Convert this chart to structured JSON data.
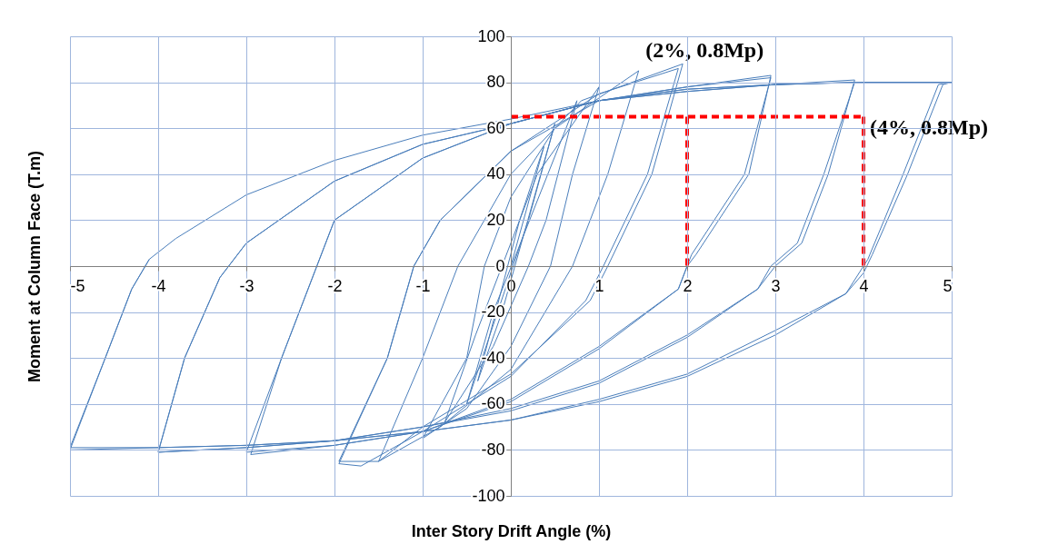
{
  "chart_data": {
    "type": "line",
    "xlabel": "Inter Story Drift Angle (%)",
    "ylabel": "Moment at Column Face (T.m)",
    "xlim": [
      -5,
      5
    ],
    "xticks": [
      -5,
      -4,
      -3,
      -2,
      -1,
      0,
      1,
      2,
      3,
      4,
      5
    ],
    "ylim": [
      -100,
      100
    ],
    "yticks": [
      -100,
      -80,
      -60,
      -40,
      -20,
      0,
      20,
      40,
      60,
      80,
      100
    ],
    "grid": true,
    "series": [
      {
        "color": "#4a7ebb",
        "line_style": "solid",
        "x": [
          0,
          0.375,
          0.1,
          -0.375,
          -0.1,
          0.5,
          0.2,
          -0.5,
          -0.2,
          0.75,
          0.4,
          0.2,
          -0.2,
          -0.75,
          -0.4,
          -0.1,
          0.3,
          1,
          0.7,
          0.45,
          0,
          -0.5,
          -1,
          -0.5,
          -0.3,
          0,
          0.5,
          1.45,
          1.1,
          0.7,
          0,
          -0.8,
          -1.5,
          -1,
          -0.6,
          0,
          0.8,
          1.95,
          1.6,
          1.1,
          0.9,
          0,
          -1,
          -1.5,
          -1.95,
          -1.4,
          -1.1,
          -0.8,
          0,
          1,
          1.9,
          1.55,
          1.05,
          0.85,
          0,
          -1,
          -1.7,
          -1.95,
          -1.4,
          -1.1,
          -0.8,
          0,
          1,
          2,
          2.95,
          2.7,
          2.1,
          2,
          1.9,
          1,
          0,
          -1,
          -2,
          -3,
          -2.6,
          -2.2,
          -2,
          -1,
          0,
          1,
          2,
          2.95,
          2.65,
          2.05,
          1.9,
          1,
          0,
          -1,
          -2,
          -2.95,
          -2.6,
          -2.2,
          -2,
          -1,
          0,
          1,
          2,
          3,
          3.9,
          3.6,
          3.3,
          3,
          2.8,
          2,
          1,
          0,
          -1,
          -2,
          -3,
          -4,
          -3.7,
          -3.3,
          -3,
          -2,
          -1,
          0,
          1,
          2,
          3,
          3.9,
          3.55,
          3.25,
          2.95,
          2.8,
          2,
          1,
          0,
          -1,
          -2,
          -3,
          -4,
          -3.7,
          -3.3,
          -3,
          -2,
          -1,
          0,
          1,
          2,
          3,
          4,
          5,
          4.9,
          4.5,
          4.1,
          4,
          3.8,
          3,
          2,
          1,
          0,
          -1,
          -2,
          -3,
          -4,
          -5,
          -4.6,
          -4.3,
          -4.1,
          -3.8,
          -3,
          -2,
          -1,
          0,
          1,
          2,
          3,
          4,
          5,
          4.85,
          4.45,
          4.05,
          3.8,
          3,
          2,
          1,
          0,
          -1,
          -2,
          -3,
          -4,
          -5,
          -4.6,
          -4.3,
          -4.1
        ],
        "values": [
          0,
          52,
          20,
          -50,
          -20,
          62,
          20,
          -60,
          -20,
          72,
          20,
          0,
          -35,
          -68,
          -30,
          0,
          40,
          78,
          40,
          0,
          -35,
          -62,
          -75,
          -40,
          0,
          30,
          60,
          85,
          40,
          0,
          -45,
          -70,
          -85,
          -40,
          0,
          40,
          72,
          88,
          40,
          0,
          -15,
          -47,
          -70,
          -85,
          -85,
          -40,
          0,
          20,
          50,
          75,
          86,
          40,
          0,
          -15,
          -48,
          -72,
          -87,
          -86,
          -40,
          0,
          20,
          50,
          72,
          78,
          83,
          40,
          5,
          0,
          -10,
          -35,
          -58,
          -72,
          -78,
          -81,
          -40,
          0,
          20,
          47,
          62,
          72,
          78,
          82,
          40,
          5,
          -10,
          -36,
          -59,
          -72,
          -78,
          -82,
          -40,
          0,
          20,
          47,
          62,
          72,
          77,
          79,
          81,
          40,
          10,
          0,
          -10,
          -30,
          -50,
          -62,
          -70,
          -76,
          -79,
          -81,
          -40,
          -5,
          10,
          37,
          53,
          62,
          72,
          77,
          79,
          80,
          40,
          10,
          0,
          -10,
          -31,
          -51,
          -63,
          -70,
          -76,
          -79,
          -81,
          -40,
          -5,
          10,
          37,
          53,
          62,
          72,
          76,
          79,
          80,
          80,
          79,
          40,
          5,
          -3,
          -12,
          -28,
          -47,
          -58,
          -67,
          -72,
          -76,
          -78,
          -79,
          -79,
          -40,
          -10,
          3,
          12,
          31,
          46,
          57,
          64,
          72,
          76,
          79,
          80,
          80,
          79,
          40,
          3,
          -12,
          -30,
          -48,
          -59,
          -67,
          -72,
          -76,
          -78,
          -79,
          -80,
          -40,
          -10,
          3
        ]
      },
      {
        "color": "#ff0000",
        "line_style": "dashed",
        "x": [
          0,
          4
        ],
        "values": [
          65,
          65
        ]
      },
      {
        "color": "#ff0000",
        "line_style": "dashed",
        "x": [
          2,
          2
        ],
        "values": [
          65,
          0
        ]
      },
      {
        "color": "#ff0000",
        "line_style": "dashed",
        "x": [
          4,
          4
        ],
        "values": [
          65,
          0
        ]
      }
    ],
    "annotations": [
      {
        "text": "(2%, 0.8Mp)",
        "x": 1.95,
        "y": 88
      },
      {
        "text": "(4%, 0.8Mp)",
        "x": 4,
        "y": 65
      }
    ]
  }
}
